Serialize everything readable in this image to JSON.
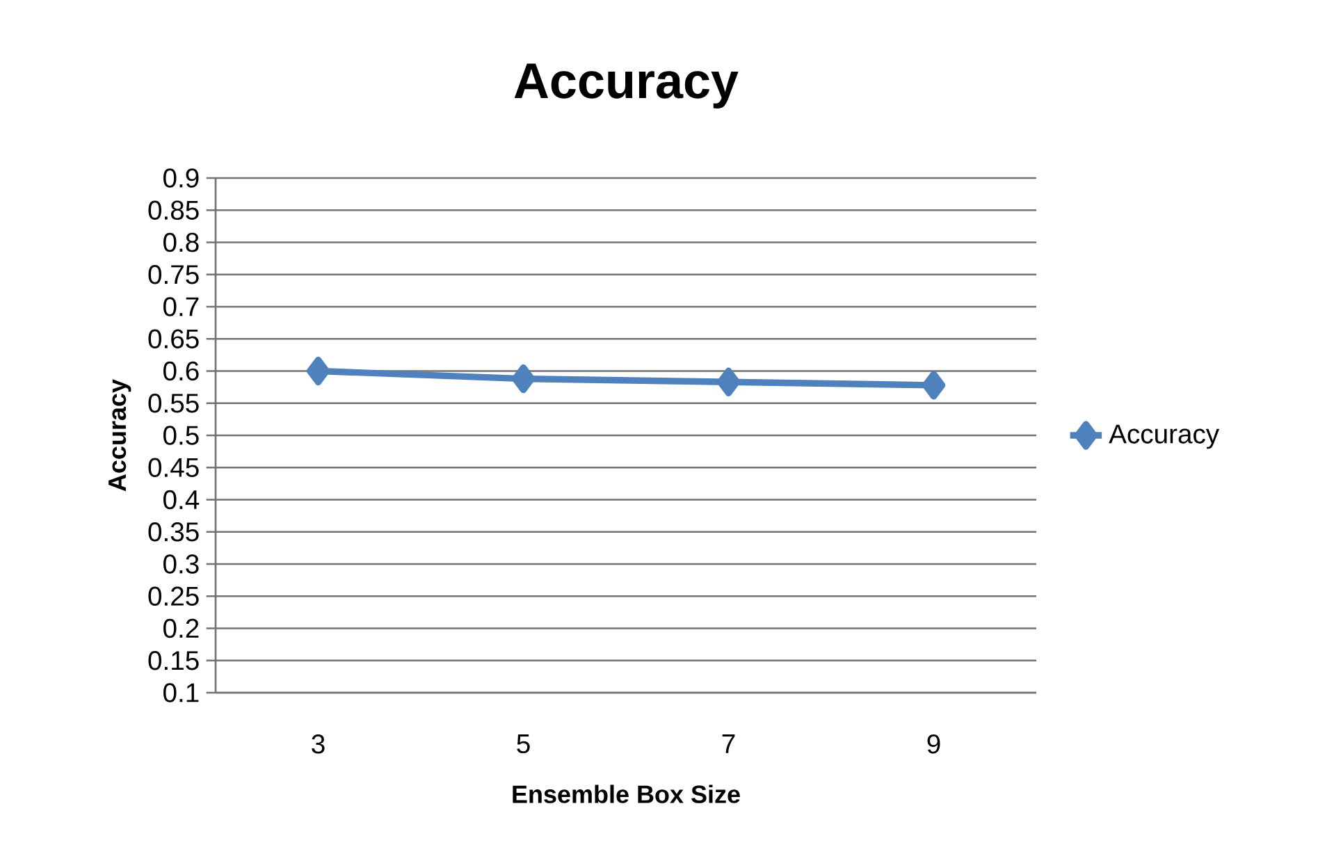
{
  "chart_data": {
    "type": "line",
    "title": "Accuracy",
    "xlabel": "Ensemble Box Size",
    "ylabel": "Accuracy",
    "categories": [
      "3",
      "5",
      "7",
      "9"
    ],
    "series": [
      {
        "name": "Accuracy",
        "color": "#4f81bd",
        "values": [
          0.6,
          0.588,
          0.583,
          0.578
        ]
      }
    ],
    "ylim": [
      0.1,
      0.9
    ],
    "yticks": [
      0.1,
      0.15,
      0.2,
      0.25,
      0.3,
      0.35,
      0.4,
      0.45,
      0.5,
      0.55,
      0.6,
      0.65,
      0.7,
      0.75,
      0.8,
      0.85,
      0.9
    ],
    "grid": "y",
    "legend": "right",
    "marker": "diamond",
    "line_style": "solid"
  }
}
